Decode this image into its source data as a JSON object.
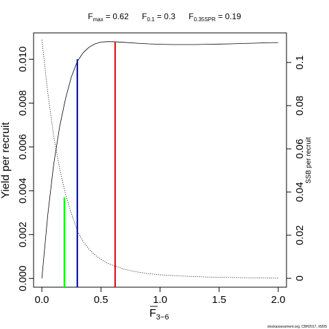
{
  "chart_data": {
    "type": "line",
    "title_parts": [
      {
        "base": "F",
        "sub": "max",
        "value": " = 0.62"
      },
      {
        "base": "F",
        "sub": "0.1",
        "value": " = 0.3"
      },
      {
        "base": "F",
        "sub": "0.35SPR",
        "value": " = 0.19"
      }
    ],
    "xlabel": {
      "base": "F",
      "sub": "3−6",
      "overline": true
    },
    "ylabel": "Yield per recruit",
    "y2label": "SSB per recruit",
    "footer": "stockassessment.org, CBH2017, r8205",
    "xlim": [
      -0.07,
      2.07
    ],
    "ylim": [
      -0.0004,
      0.0112
    ],
    "y2lim": [
      -0.0041,
      0.1137
    ],
    "xticks": [
      0.0,
      0.5,
      1.0,
      1.5,
      2.0
    ],
    "xtick_labels": [
      "0.0",
      "0.5",
      "1.0",
      "1.5",
      "2.0"
    ],
    "yticks": [
      0.0,
      0.002,
      0.004,
      0.006,
      0.008,
      0.01
    ],
    "ytick_labels": [
      "0.000",
      "0.002",
      "0.004",
      "0.006",
      "0.008",
      "0.010"
    ],
    "y2ticks": [
      0.0,
      0.02,
      0.04,
      0.06,
      0.08,
      0.1
    ],
    "y2tick_labels": [
      "0",
      "0.02",
      "0.04",
      "0.06",
      "0.08",
      "0.1"
    ],
    "grid": false,
    "series": [
      {
        "axis": "left",
        "style": "solid",
        "x": [
          0,
          0.05,
          0.1,
          0.15,
          0.2,
          0.25,
          0.3,
          0.35,
          0.4,
          0.45,
          0.5,
          0.55,
          0.6,
          0.7,
          0.8,
          0.9,
          1.0,
          1.1,
          1.2,
          1.3,
          1.4,
          1.5,
          1.6,
          1.7,
          1.8,
          1.9,
          2.0
        ],
        "y": [
          0,
          0.0029,
          0.0052,
          0.0069,
          0.0082,
          0.0092,
          0.0099,
          0.0103,
          0.01055,
          0.0107,
          0.01078,
          0.0108,
          0.0108,
          0.01077,
          0.01073,
          0.0107,
          0.01068,
          0.01067,
          0.01067,
          0.01067,
          0.01068,
          0.01069,
          0.0107,
          0.01072,
          0.01073,
          0.01075,
          0.01076
        ]
      },
      {
        "axis": "right",
        "style": "dotted",
        "x": [
          0,
          0.05,
          0.1,
          0.15,
          0.2,
          0.25,
          0.3,
          0.35,
          0.4,
          0.45,
          0.5,
          0.55,
          0.6,
          0.7,
          0.8,
          0.9,
          1.0,
          1.2,
          1.4,
          1.6,
          1.8,
          2.0
        ],
        "y": [
          0.1105,
          0.086,
          0.066,
          0.051,
          0.039,
          0.03,
          0.022,
          0.017,
          0.0135,
          0.0108,
          0.0088,
          0.0072,
          0.006,
          0.0042,
          0.003,
          0.0022,
          0.0016,
          0.001,
          0.0006,
          0.0004,
          0.0002,
          0.0001
        ]
      }
    ],
    "reference_lines": [
      {
        "x": 0.19,
        "y": 0.0037,
        "color": "#00ff00"
      },
      {
        "x": 0.3,
        "y": 0.01,
        "color": "#0000ff"
      },
      {
        "x": 0.62,
        "y": 0.0108,
        "color": "#ff0000"
      }
    ]
  }
}
